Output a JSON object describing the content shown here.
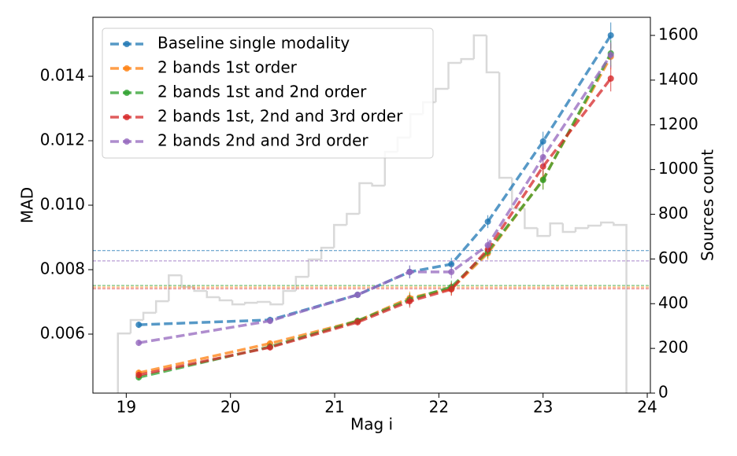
{
  "chart_data": {
    "type": "line",
    "xlabel": "Mag i",
    "ylabel": "MAD",
    "y2label": "Sources count",
    "x": [
      19.12,
      20.38,
      21.22,
      21.72,
      22.12,
      22.47,
      23.0,
      23.65
    ],
    "series": [
      {
        "name": "Baseline single modality",
        "color": "#1f77b4",
        "values": [
          0.00629,
          0.00644,
          0.00722,
          0.00793,
          0.00817,
          0.00949,
          0.01198,
          0.01527
        ],
        "errors": [
          0.0001,
          0.0001,
          0.0001,
          0.0002,
          0.0002,
          0.0002,
          0.0003,
          0.0004
        ],
        "hline": 0.00859
      },
      {
        "name": "2 bands 1st order",
        "color": "#ff7f0e",
        "values": [
          0.0048,
          0.00571,
          0.00641,
          0.00712,
          0.00741,
          0.00851,
          0.0108,
          0.01461
        ],
        "errors": [
          0.0001,
          0.0001,
          0.0001,
          0.0002,
          0.0002,
          0.0002,
          0.0003,
          0.0004
        ],
        "hline": 0.00746
      },
      {
        "name": "2 bands 1st and 2nd order",
        "color": "#2ca02c",
        "values": [
          0.00466,
          0.00561,
          0.00641,
          0.00707,
          0.00746,
          0.00856,
          0.01078,
          0.01471
        ],
        "errors": [
          0.0001,
          0.0001,
          0.0001,
          0.0002,
          0.0002,
          0.0002,
          0.0003,
          0.0004
        ],
        "hline": 0.00751
      },
      {
        "name": "2 bands 1st, 2nd and 3rd order",
        "color": "#d62728",
        "values": [
          0.00473,
          0.00559,
          0.00637,
          0.00702,
          0.00739,
          0.00863,
          0.0112,
          0.01393
        ],
        "errors": [
          0.0001,
          0.0001,
          0.0001,
          0.0002,
          0.0002,
          0.0002,
          0.0003,
          0.0004
        ],
        "hline": 0.00741
      },
      {
        "name": "2 bands 2nd and 3rd order",
        "color": "#9467bd",
        "values": [
          0.00573,
          0.00641,
          0.00722,
          0.00793,
          0.00793,
          0.00876,
          0.01149,
          0.01466
        ],
        "errors": [
          0.0001,
          0.0001,
          0.0001,
          0.0002,
          0.0002,
          0.0002,
          0.0003,
          0.0004
        ],
        "hline": 0.00827
      }
    ],
    "histogram": {
      "color": "#d9d9d9",
      "axis": "y2",
      "bins": [
        18.92,
        19.042,
        19.164,
        19.286,
        19.408,
        19.53,
        19.652,
        19.774,
        19.896,
        20.018,
        20.14,
        20.262,
        20.384,
        20.506,
        20.628,
        20.75,
        20.872,
        20.994,
        21.116,
        21.238,
        21.36,
        21.482,
        21.604,
        21.726,
        21.848,
        21.97,
        22.092,
        22.214,
        22.336,
        22.458,
        22.58,
        22.702,
        22.824,
        22.946,
        23.068,
        23.19,
        23.312,
        23.434,
        23.556,
        23.678,
        23.8
      ],
      "counts": [
        267,
        327,
        359,
        411,
        527,
        475,
        457,
        429,
        415,
        397,
        404,
        408,
        397,
        457,
        520,
        598,
        650,
        752,
        802,
        939,
        928,
        1079,
        1143,
        1248,
        1301,
        1361,
        1477,
        1494,
        1600,
        1435,
        963,
        826,
        738,
        703,
        759,
        721,
        738,
        749,
        763,
        752
      ]
    },
    "xlim": [
      18.68,
      24.03
    ],
    "ylim": [
      0.00417,
      0.01583
    ],
    "y2lim": [
      0,
      1681
    ],
    "xticks": [
      19,
      20,
      21,
      22,
      23,
      24
    ],
    "yticks": [
      0.006,
      0.008,
      {
        "value": 0.01,
        "label": "0.010"
      },
      0.012,
      0.014
    ],
    "y2ticks": [
      0,
      200,
      400,
      600,
      800,
      1000,
      1200,
      1400,
      1600
    ],
    "legend": "upper left"
  }
}
